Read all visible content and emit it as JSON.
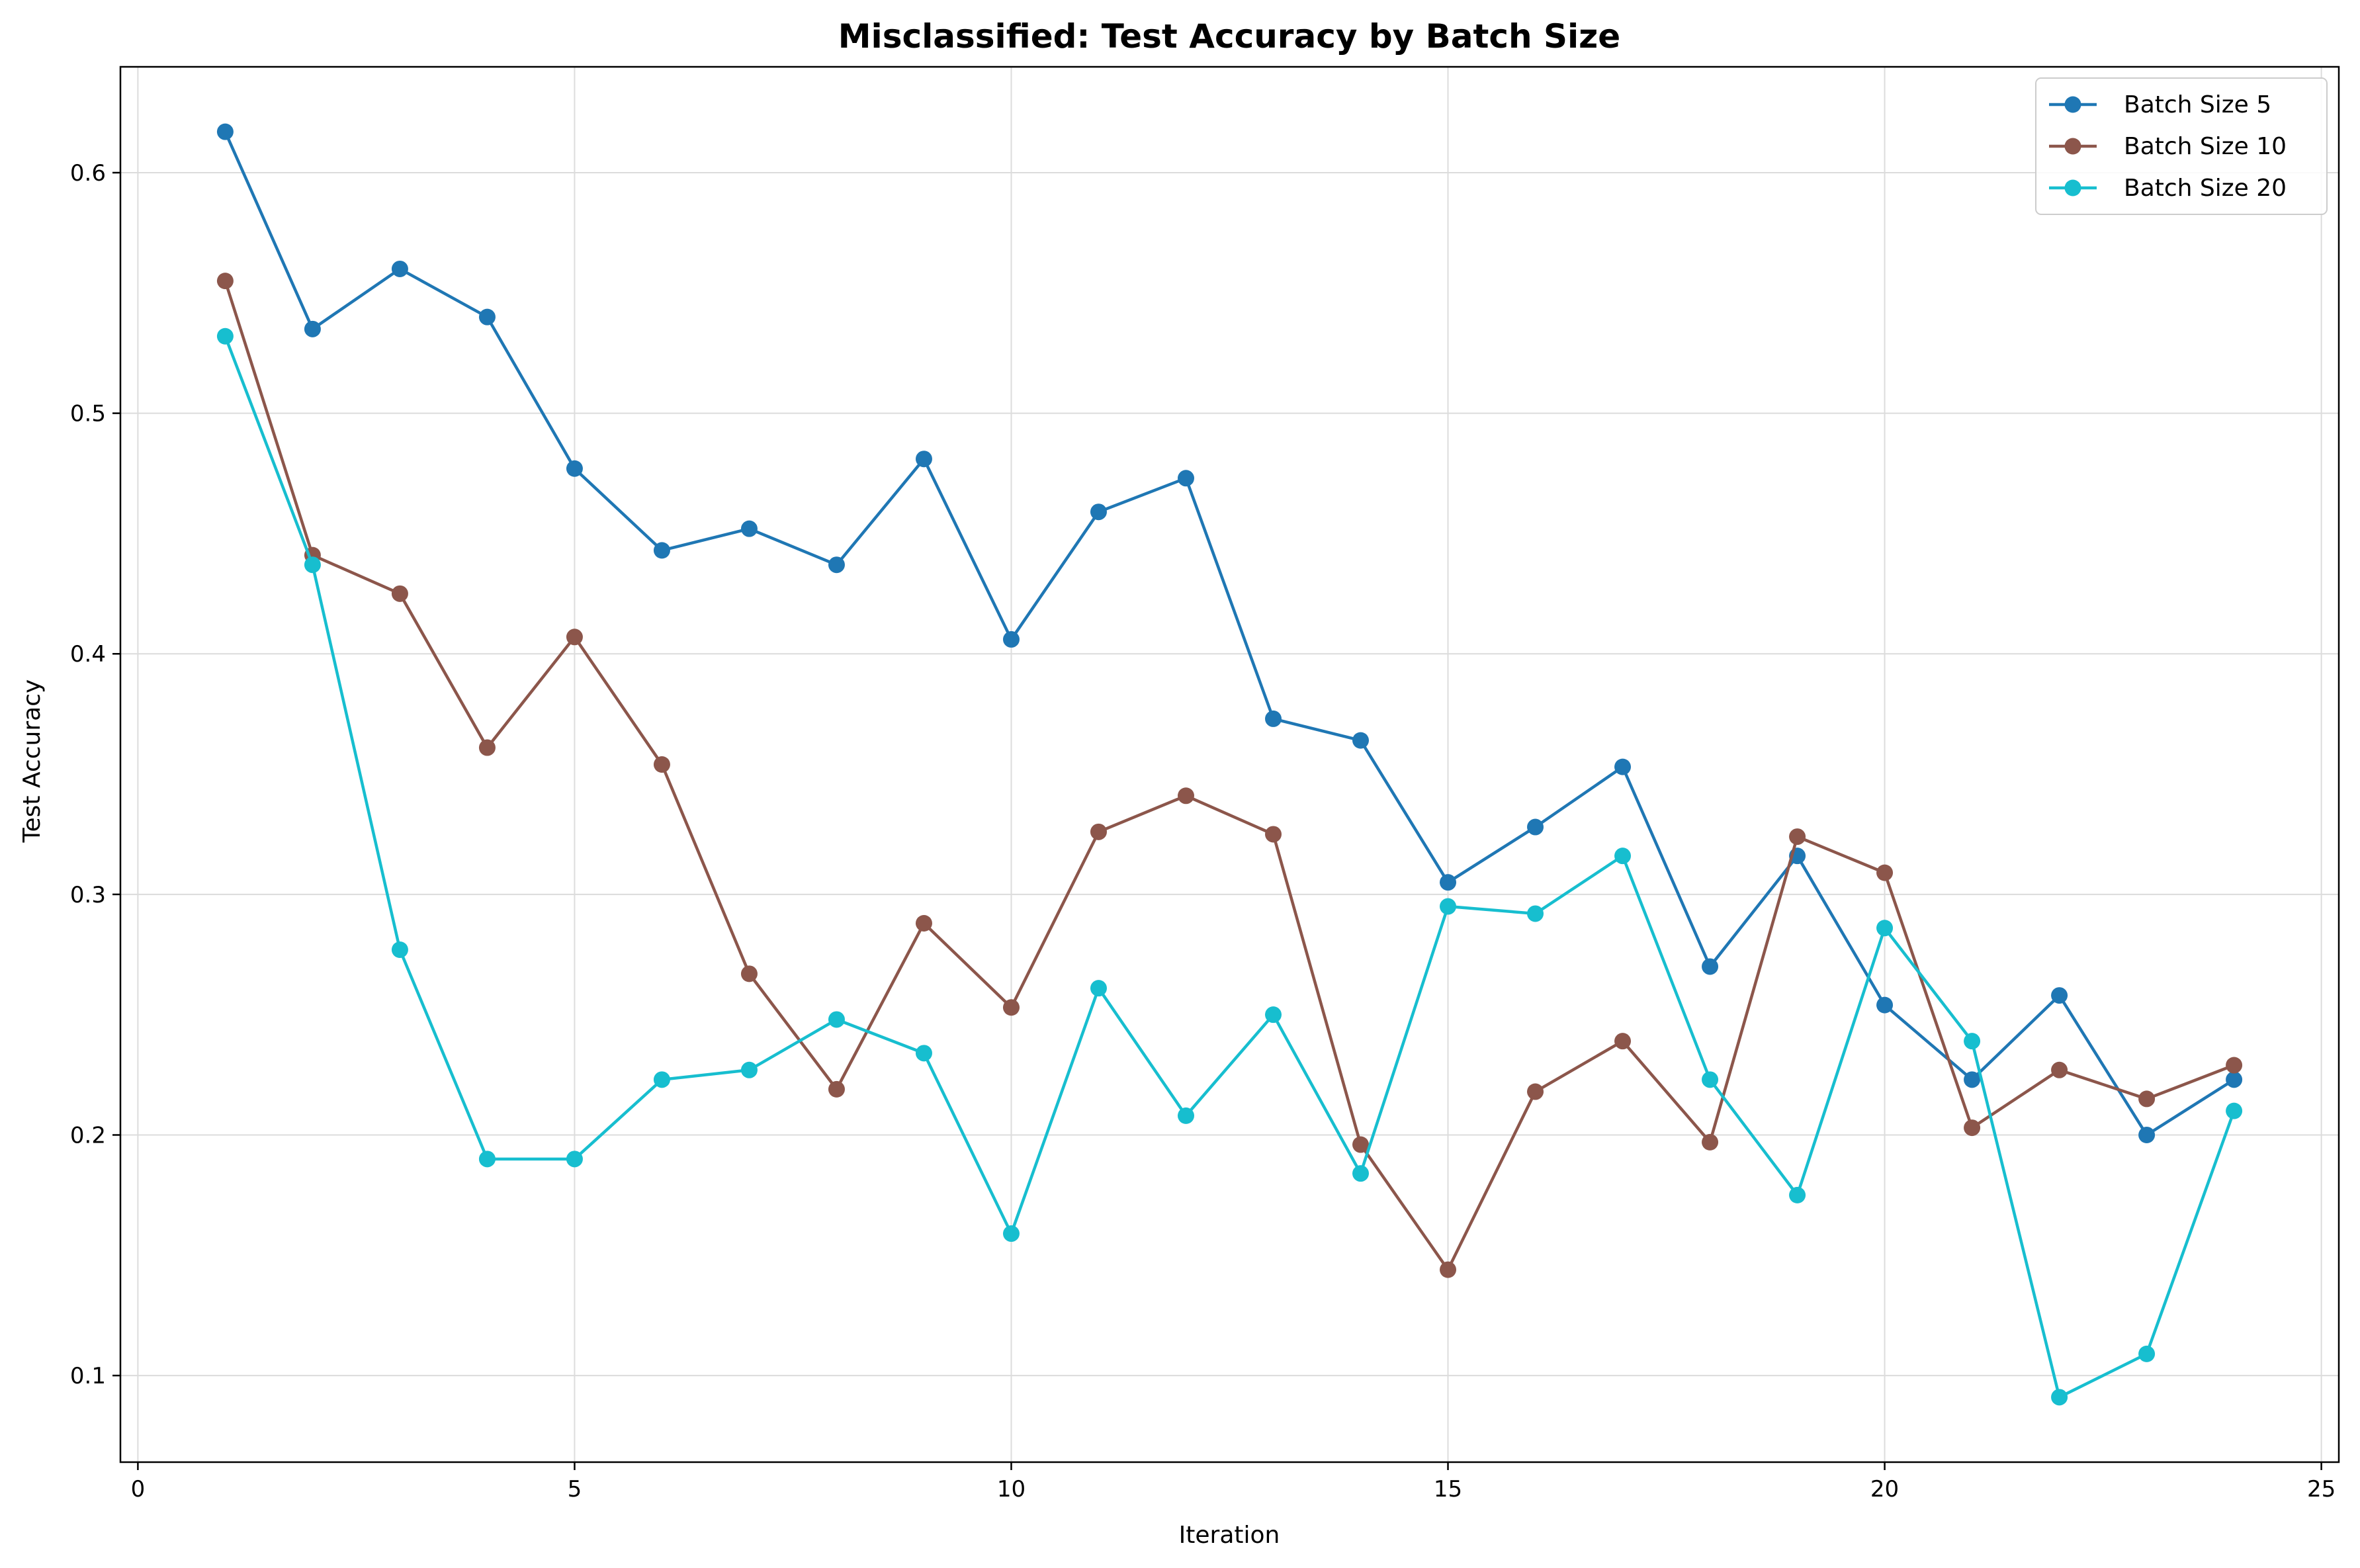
{
  "chart_data": {
    "type": "line",
    "title": "Misclassified: Test Accuracy by Batch Size",
    "xlabel": "Iteration",
    "ylabel": "Test Accuracy",
    "xlim": [
      -0.2,
      25.2
    ],
    "ylim": [
      0.064,
      0.644
    ],
    "xticks": [
      0,
      5,
      10,
      15,
      20,
      25
    ],
    "yticks": [
      0.1,
      0.2,
      0.3,
      0.4,
      0.5,
      0.6
    ],
    "xtick_labels": [
      "0",
      "5",
      "10",
      "15",
      "20",
      "25"
    ],
    "ytick_labels": [
      "0.1",
      "0.2",
      "0.3",
      "0.4",
      "0.5",
      "0.6"
    ],
    "grid": true,
    "legend_position": "top-right",
    "x": [
      1,
      2,
      3,
      4,
      5,
      6,
      7,
      8,
      9,
      10,
      11,
      12,
      13,
      14,
      15,
      16,
      17,
      18,
      19,
      20,
      21,
      22,
      23,
      24
    ],
    "series": [
      {
        "name": "Batch Size 5",
        "color": "#1f77b4",
        "values": [
          0.617,
          0.535,
          0.56,
          0.54,
          0.477,
          0.443,
          0.452,
          0.437,
          0.481,
          0.406,
          0.459,
          0.473,
          0.373,
          0.364,
          0.305,
          0.328,
          0.353,
          0.27,
          0.316,
          0.254,
          0.223,
          0.258,
          0.2,
          0.223
        ]
      },
      {
        "name": "Batch Size 10",
        "color": "#8c564b",
        "values": [
          0.555,
          0.441,
          0.425,
          0.361,
          0.407,
          0.354,
          0.267,
          0.219,
          0.288,
          0.253,
          0.326,
          0.341,
          0.325,
          0.196,
          0.144,
          0.218,
          0.239,
          0.197,
          0.324,
          0.309,
          0.203,
          0.227,
          0.215,
          0.229
        ]
      },
      {
        "name": "Batch Size 20",
        "color": "#17becf",
        "values": [
          0.532,
          0.437,
          0.277,
          0.19,
          0.19,
          0.223,
          0.227,
          0.248,
          0.234,
          0.159,
          0.261,
          0.208,
          0.25,
          0.184,
          0.295,
          0.292,
          0.316,
          0.223,
          0.175,
          0.286,
          0.239,
          0.091,
          0.109,
          0.21
        ]
      }
    ]
  }
}
